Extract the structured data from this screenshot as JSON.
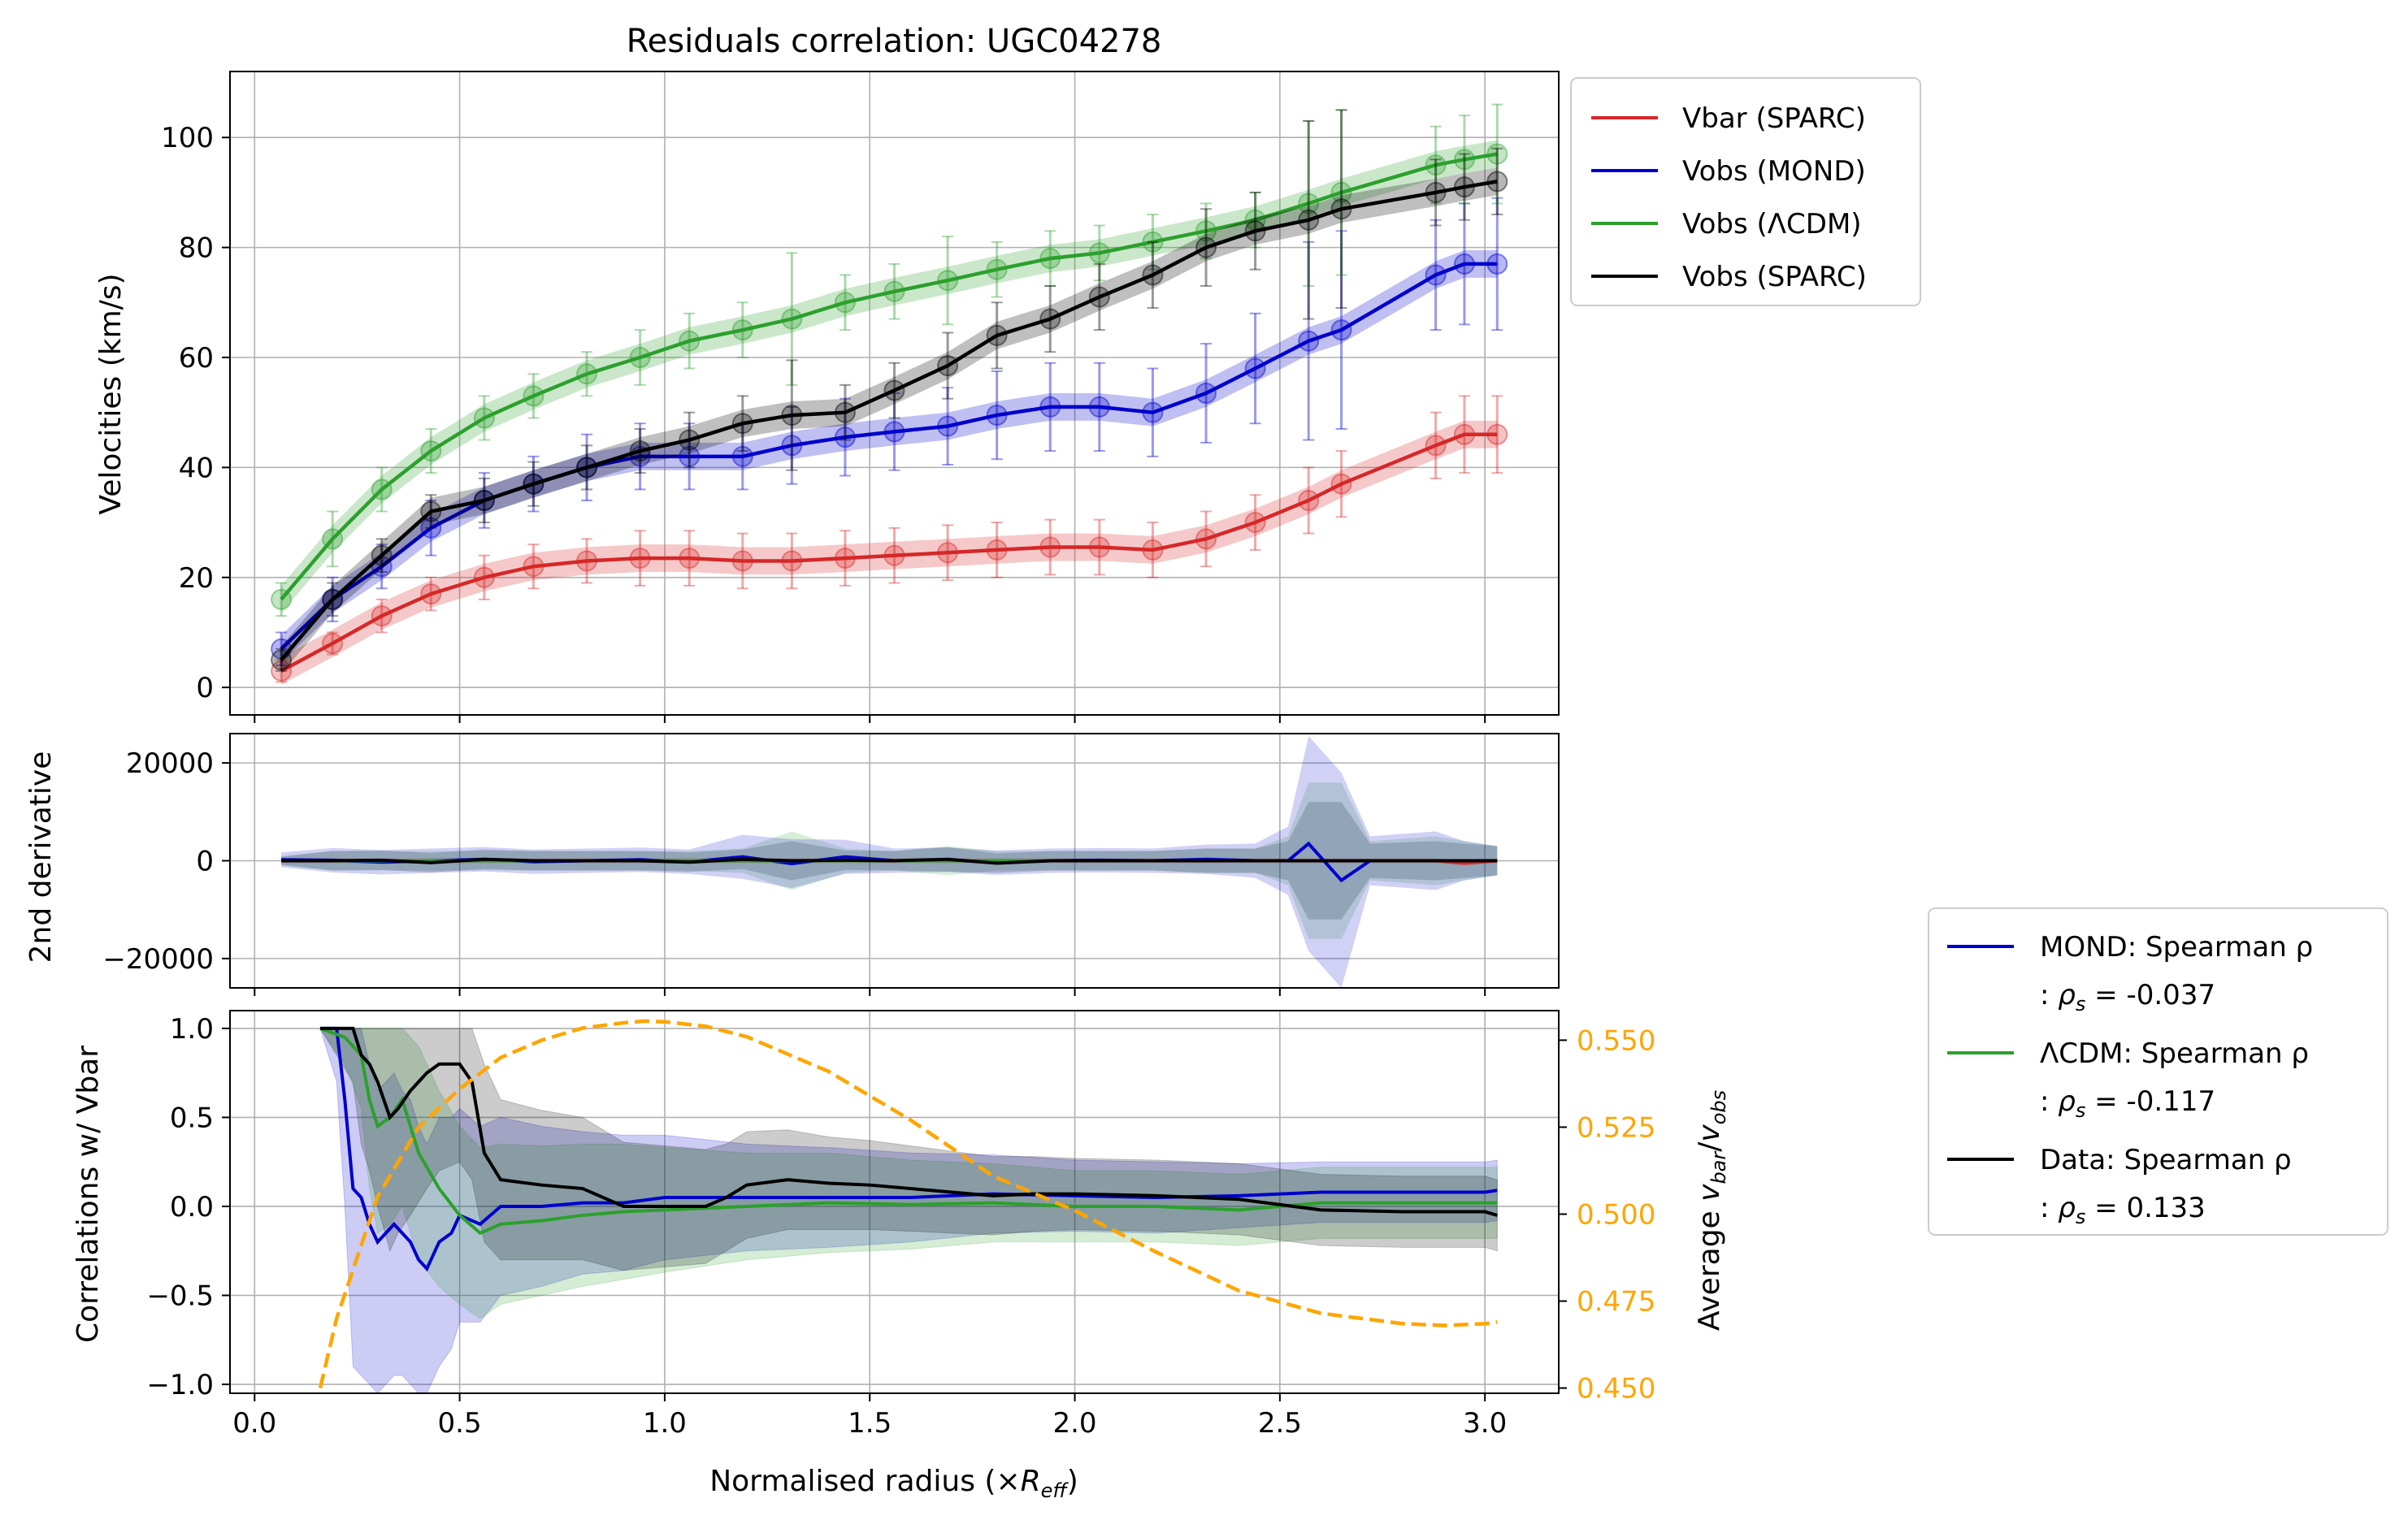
{
  "chart_data": [
    {
      "type": "line",
      "panel": "velocities",
      "title": "Residuals correlation: UGC04278",
      "xlabel": "",
      "ylabel": "Velocities (km/s)",
      "xlim": [
        -0.06,
        3.18
      ],
      "ylim": [
        -5,
        112
      ],
      "xticks": [
        0.0,
        0.5,
        1.0,
        1.5,
        2.0,
        2.5,
        3.0
      ],
      "yticks": [
        0,
        20,
        40,
        60,
        80,
        100
      ],
      "grid": true,
      "legend": "outside-right-top",
      "x": [
        0.065,
        0.19,
        0.31,
        0.43,
        0.56,
        0.68,
        0.81,
        0.94,
        1.06,
        1.19,
        1.31,
        1.44,
        1.56,
        1.69,
        1.81,
        1.94,
        2.06,
        2.19,
        2.32,
        2.44,
        2.57,
        2.65,
        2.88,
        2.95,
        3.03
      ],
      "series": [
        {
          "name": "Vbar (SPARC)",
          "color": "#d62728",
          "values": [
            3,
            8,
            13,
            17,
            20,
            22,
            23,
            23.5,
            23.5,
            23,
            23,
            23.5,
            24,
            24.5,
            25,
            25.5,
            25.5,
            25,
            27,
            30,
            34,
            37,
            44,
            46,
            46
          ],
          "errors": [
            2,
            2,
            3,
            3,
            4,
            4,
            4,
            5,
            5,
            5,
            5,
            5,
            5,
            5,
            5,
            5,
            5,
            5,
            5,
            5,
            6,
            6,
            6,
            7,
            7
          ]
        },
        {
          "name": "Vobs (MOND)",
          "color": "#0000cc",
          "values": [
            7,
            16,
            22,
            29,
            34,
            37,
            40,
            42,
            42,
            42,
            44,
            45.5,
            46.5,
            47.5,
            49.5,
            51,
            51,
            50,
            53.5,
            58,
            63,
            65,
            75,
            77,
            77
          ],
          "errors": [
            3,
            4,
            4,
            5,
            5,
            5,
            6,
            6,
            6,
            6,
            7,
            7,
            7,
            7,
            8,
            8,
            8,
            8,
            9,
            10,
            18,
            18,
            10,
            11,
            12
          ]
        },
        {
          "name": "Vobs (ΛCDM)",
          "color": "#2ca02c",
          "values": [
            16,
            27,
            36,
            43,
            49,
            53,
            57,
            60,
            63,
            65,
            67,
            70,
            72,
            74,
            76,
            78,
            79,
            81,
            83,
            85,
            88,
            90,
            95,
            96,
            97
          ],
          "errors": [
            3,
            5,
            4,
            4,
            4,
            4,
            4,
            5,
            5,
            5,
            12,
            5,
            5,
            8,
            5,
            5,
            5,
            5,
            5,
            5,
            15,
            15,
            7,
            8,
            9
          ]
        },
        {
          "name": "Vobs (SPARC)",
          "color": "#000000",
          "values": [
            5,
            16,
            24,
            32,
            34,
            37,
            40,
            43,
            45,
            48,
            49.5,
            50,
            54,
            58.5,
            64,
            67,
            71,
            75,
            80,
            83,
            85,
            87,
            90,
            91,
            92
          ],
          "errors": [
            2,
            3,
            3,
            3,
            4,
            4,
            4,
            4,
            5,
            5,
            10,
            5,
            5,
            6,
            6,
            6,
            6,
            6,
            7,
            7,
            18,
            18,
            6,
            6,
            6
          ]
        }
      ]
    },
    {
      "type": "line",
      "panel": "second-derivative",
      "ylabel": "2nd derivative",
      "xlim": [
        -0.06,
        3.18
      ],
      "ylim": [
        -26000,
        26000
      ],
      "yticks": [
        -20000,
        0,
        20000
      ],
      "grid": true,
      "x": [
        0.065,
        0.19,
        0.31,
        0.43,
        0.56,
        0.68,
        0.81,
        0.94,
        1.06,
        1.19,
        1.31,
        1.44,
        1.56,
        1.69,
        1.81,
        1.94,
        2.06,
        2.19,
        2.32,
        2.44,
        2.52,
        2.57,
        2.65,
        2.72,
        2.88,
        2.95,
        3.03
      ],
      "series": [
        {
          "name": "Vbar",
          "color": "#d62728",
          "values": [
            0,
            0,
            0,
            0,
            0,
            0,
            0,
            0,
            0,
            0,
            0,
            0,
            0,
            0,
            0,
            0,
            0,
            0,
            0,
            0,
            0,
            0,
            0,
            0,
            0,
            -500,
            0
          ],
          "band": [
            500,
            500,
            500,
            500,
            500,
            500,
            500,
            500,
            500,
            500,
            500,
            500,
            500,
            500,
            500,
            500,
            500,
            500,
            500,
            500,
            500,
            500,
            500,
            500,
            500,
            500,
            500
          ]
        },
        {
          "name": "MOND",
          "color": "#0000cc",
          "values": [
            200,
            100,
            -300,
            0,
            300,
            -200,
            0,
            200,
            -200,
            800,
            -600,
            800,
            0,
            200,
            -400,
            0,
            100,
            0,
            300,
            0,
            0,
            3500,
            -4000,
            0,
            0,
            0,
            0
          ],
          "band": [
            1500,
            2500,
            2500,
            2500,
            2500,
            2500,
            2500,
            2500,
            2500,
            4500,
            5000,
            3500,
            2500,
            2500,
            2500,
            2500,
            2500,
            2500,
            3000,
            3500,
            7000,
            22000,
            22000,
            5000,
            6000,
            4000,
            3000
          ]
        },
        {
          "name": "ΛCDM",
          "color": "#2ca02c",
          "values": [
            0,
            0,
            0,
            0,
            0,
            0,
            0,
            0,
            0,
            0,
            0,
            0,
            0,
            0,
            0,
            0,
            0,
            0,
            0,
            0,
            0,
            0,
            0,
            0,
            0,
            0,
            0
          ],
          "band": [
            1000,
            2000,
            2000,
            2000,
            2000,
            2000,
            2000,
            2000,
            2000,
            2500,
            6000,
            2500,
            2000,
            3000,
            2000,
            2000,
            2000,
            2000,
            2500,
            2500,
            5000,
            16000,
            16000,
            4000,
            5000,
            4000,
            3000
          ]
        },
        {
          "name": "Data",
          "color": "#000000",
          "values": [
            0,
            0,
            100,
            -400,
            300,
            0,
            0,
            0,
            -300,
            300,
            0,
            100,
            0,
            300,
            -500,
            0,
            0,
            0,
            0,
            0,
            0,
            0,
            0,
            0,
            0,
            0,
            0
          ],
          "band": [
            800,
            2000,
            2000,
            2000,
            2000,
            2000,
            2000,
            2000,
            2000,
            2000,
            4000,
            2000,
            2000,
            2500,
            2000,
            2000,
            2000,
            2000,
            2500,
            2500,
            4000,
            12000,
            12000,
            3500,
            4000,
            3500,
            3000
          ]
        }
      ]
    },
    {
      "type": "line",
      "panel": "correlations",
      "xlabel": "Normalised radius (×R_eff)",
      "xlabel_main": "Normalised radius (×",
      "xlabel_italic": "R",
      "xlabel_sub": "eff",
      "xlabel_end": ")",
      "ylabel": "Correlations w/ Vbar",
      "y2label": "Average v_bar/v_obs",
      "y2label_main": "Average ",
      "y2label_v1": "v",
      "y2label_sub1": "bar",
      "y2label_slash": "/",
      "y2label_v2": "v",
      "y2label_sub2": "obs",
      "xlim": [
        -0.06,
        3.18
      ],
      "ylim": [
        -1.05,
        1.1
      ],
      "y2lim": [
        0.4485,
        0.5585
      ],
      "xticks": [
        0.0,
        0.5,
        1.0,
        1.5,
        2.0,
        2.5,
        3.0
      ],
      "xtick_labels": [
        "0.0",
        "0.5",
        "1.0",
        "1.5",
        "2.0",
        "2.5",
        "3.0"
      ],
      "yticks": [
        -1.0,
        -0.5,
        0.0,
        0.5,
        1.0
      ],
      "ytick_labels": [
        "−1.0",
        "−0.5",
        "0.0",
        "0.5",
        "1.0"
      ],
      "y2ticks": [
        0.45,
        0.475,
        0.5,
        0.525,
        0.55
      ],
      "y2tick_labels": [
        "0.450",
        "0.475",
        "0.500",
        "0.525",
        "0.550"
      ],
      "y2color": "#ffa500",
      "grid": true,
      "legend": "outside-right-bottom",
      "series": [
        {
          "name": "MOND",
          "color": "#0000cc",
          "legend_label": "MOND: Spearman ρ",
          "legend_stat": ": ρs = -0.037",
          "legend_stat_pre": ": ",
          "legend_stat_sym": "ρ",
          "legend_stat_sub": "s",
          "legend_stat_val": " = -0.037",
          "x": [
            0.16,
            0.2,
            0.22,
            0.24,
            0.26,
            0.28,
            0.3,
            0.32,
            0.34,
            0.36,
            0.38,
            0.4,
            0.42,
            0.45,
            0.48,
            0.5,
            0.55,
            0.6,
            0.7,
            0.8,
            0.9,
            1.0,
            1.2,
            1.4,
            1.6,
            1.8,
            2.0,
            2.2,
            2.4,
            2.6,
            2.8,
            3.0,
            3.03
          ],
          "values": [
            1.0,
            1.0,
            0.6,
            0.1,
            0.05,
            -0.1,
            -0.2,
            -0.15,
            -0.1,
            -0.15,
            -0.2,
            -0.3,
            -0.35,
            -0.2,
            -0.15,
            -0.05,
            -0.1,
            0.0,
            0.0,
            0.02,
            0.02,
            0.05,
            0.05,
            0.05,
            0.05,
            0.07,
            0.06,
            0.05,
            0.06,
            0.08,
            0.08,
            0.08,
            0.09
          ],
          "band": [
            0.0,
            0.3,
            0.6,
            1.0,
            1.0,
            0.9,
            0.85,
            0.85,
            0.85,
            0.8,
            0.8,
            0.75,
            0.7,
            0.7,
            0.65,
            0.6,
            0.55,
            0.5,
            0.45,
            0.4,
            0.38,
            0.35,
            0.3,
            0.28,
            0.25,
            0.22,
            0.2,
            0.2,
            0.18,
            0.17,
            0.17,
            0.17,
            0.17
          ]
        },
        {
          "name": "ΛCDM",
          "color": "#2ca02c",
          "legend_label": "ΛCDM: Spearman ρ",
          "legend_stat": ": ρs = -0.117",
          "legend_stat_pre": ": ",
          "legend_stat_sym": "ρ",
          "legend_stat_sub": "s",
          "legend_stat_val": " = -0.117",
          "x": [
            0.16,
            0.22,
            0.26,
            0.28,
            0.3,
            0.33,
            0.36,
            0.4,
            0.45,
            0.5,
            0.55,
            0.6,
            0.7,
            0.8,
            0.9,
            1.0,
            1.2,
            1.4,
            1.6,
            1.8,
            2.0,
            2.2,
            2.4,
            2.6,
            2.8,
            3.0,
            3.03
          ],
          "values": [
            1.0,
            0.95,
            0.85,
            0.6,
            0.45,
            0.5,
            0.6,
            0.3,
            0.1,
            -0.05,
            -0.15,
            -0.1,
            -0.08,
            -0.05,
            -0.03,
            -0.02,
            0.0,
            0.02,
            0.01,
            0.02,
            0.0,
            0.0,
            -0.02,
            0.02,
            0.02,
            0.02,
            0.02
          ],
          "band": [
            0.0,
            0.15,
            0.3,
            0.5,
            0.6,
            0.6,
            0.6,
            0.6,
            0.55,
            0.5,
            0.48,
            0.45,
            0.42,
            0.4,
            0.38,
            0.35,
            0.3,
            0.28,
            0.25,
            0.22,
            0.2,
            0.2,
            0.2,
            0.2,
            0.2,
            0.2,
            0.2
          ]
        },
        {
          "name": "Data",
          "color": "#000000",
          "legend_label": "Data: Spearman ρ",
          "legend_stat": ": ρs = 0.133",
          "legend_stat_pre": ": ",
          "legend_stat_sym": "ρ",
          "legend_stat_sub": "s",
          "legend_stat_val": " = 0.133",
          "x": [
            0.16,
            0.24,
            0.26,
            0.28,
            0.3,
            0.33,
            0.35,
            0.38,
            0.42,
            0.45,
            0.5,
            0.53,
            0.56,
            0.6,
            0.7,
            0.8,
            0.85,
            0.9,
            1.0,
            1.1,
            1.15,
            1.2,
            1.3,
            1.4,
            1.5,
            1.6,
            1.7,
            1.8,
            1.9,
            2.0,
            2.2,
            2.4,
            2.6,
            2.8,
            2.9,
            3.0,
            3.03
          ],
          "values": [
            1.0,
            1.0,
            0.85,
            0.8,
            0.7,
            0.5,
            0.55,
            0.65,
            0.75,
            0.8,
            0.8,
            0.7,
            0.3,
            0.15,
            0.12,
            0.1,
            0.05,
            0.0,
            0.0,
            0.0,
            0.05,
            0.12,
            0.15,
            0.13,
            0.12,
            0.1,
            0.08,
            0.06,
            0.07,
            0.07,
            0.06,
            0.04,
            -0.02,
            -0.03,
            -0.03,
            -0.03,
            -0.05
          ],
          "band": [
            0.0,
            0.3,
            0.5,
            0.6,
            0.7,
            0.75,
            0.7,
            0.7,
            0.65,
            0.6,
            0.55,
            0.55,
            0.5,
            0.45,
            0.42,
            0.4,
            0.38,
            0.36,
            0.34,
            0.32,
            0.3,
            0.3,
            0.28,
            0.26,
            0.25,
            0.24,
            0.23,
            0.22,
            0.21,
            0.2,
            0.2,
            0.2,
            0.2,
            0.2,
            0.2,
            0.2,
            0.2
          ]
        },
        {
          "name": "Average vbar/vobs",
          "color": "#ffa500",
          "axis": "y2",
          "dashed": true,
          "x": [
            0.16,
            0.2,
            0.3,
            0.4,
            0.5,
            0.6,
            0.7,
            0.8,
            0.9,
            0.95,
            1.0,
            1.1,
            1.2,
            1.4,
            1.6,
            1.8,
            2.0,
            2.2,
            2.4,
            2.6,
            2.8,
            2.9,
            3.0,
            3.03
          ],
          "values": [
            0.45,
            0.47,
            0.505,
            0.525,
            0.536,
            0.545,
            0.55,
            0.5535,
            0.555,
            0.5555,
            0.5553,
            0.554,
            0.551,
            0.541,
            0.527,
            0.511,
            0.501,
            0.489,
            0.478,
            0.4715,
            0.4685,
            0.468,
            0.4685,
            0.469
          ]
        }
      ]
    }
  ],
  "labels": {
    "title": "Residuals correlation: UGC04278",
    "panel1_ylabel": "Velocities (km/s)",
    "panel2_ylabel": "2nd derivative",
    "panel3_ylabel": "Correlations w/ Vbar",
    "panel1_yticks": [
      "0",
      "20",
      "40",
      "60",
      "80",
      "100"
    ],
    "panel2_yticks": [
      "−20000",
      "0",
      "20000"
    ],
    "legend1": [
      "Vbar (SPARC)",
      "Vobs (MOND)",
      "Vobs (ΛCDM)",
      "Vobs (SPARC)"
    ]
  }
}
